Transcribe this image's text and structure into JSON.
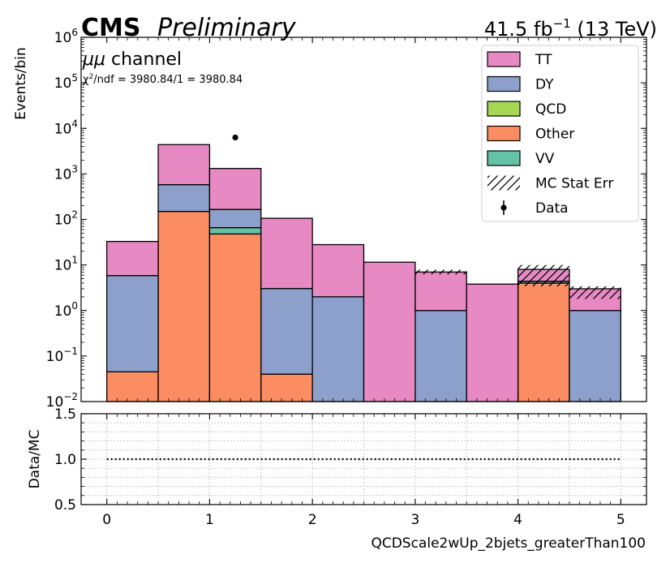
{
  "header": {
    "cms": "CMS",
    "preliminary": "Preliminary",
    "lumi": "41.5 fb",
    "lumi_exp": "−1",
    "energy": " (13 TeV)",
    "channel_sym": "μμ",
    "channel_word": " channel",
    "chi2_sym": "χ",
    "chi2_sup": "2",
    "chi2_rest": "/ndf = 3980.84/1 = 3980.84"
  },
  "chart_data": [
    {
      "type": "bar",
      "subtype": "stacked-histogram",
      "ylabel": "Events/bin",
      "yscale": "log",
      "ylim": [
        0.01,
        1000000
      ],
      "xlim": [
        -0.25,
        5.25
      ],
      "bin_edges": [
        0,
        0.5,
        1,
        1.5,
        2,
        2.5,
        3,
        3.5,
        4,
        4.5,
        5
      ],
      "yticks": [
        {
          "value": 0.01,
          "base": "10",
          "exp": "−2"
        },
        {
          "value": 0.1,
          "base": "10",
          "exp": "−1"
        },
        {
          "value": 1,
          "base": "10",
          "exp": "0"
        },
        {
          "value": 10,
          "base": "10",
          "exp": "1"
        },
        {
          "value": 100,
          "base": "10",
          "exp": "2"
        },
        {
          "value": 1000,
          "base": "10",
          "exp": "3"
        },
        {
          "value": 10000,
          "base": "10",
          "exp": "4"
        },
        {
          "value": 100000,
          "base": "10",
          "exp": "5"
        },
        {
          "value": 1000000,
          "base": "10",
          "exp": "6"
        }
      ],
      "series": [
        {
          "name": "Other",
          "color": "#fc8d62",
          "values": [
            0.045,
            150,
            48,
            0.04,
            0,
            0,
            0,
            0,
            4,
            0
          ]
        },
        {
          "name": "VV",
          "color": "#66c2a5",
          "values": [
            0,
            0,
            18,
            0,
            0,
            0,
            0,
            0,
            0,
            0
          ]
        },
        {
          "name": "QCD",
          "color": "#a6d854",
          "values": [
            0,
            0,
            0,
            0,
            0,
            0,
            0,
            0,
            0,
            0
          ]
        },
        {
          "name": "DY",
          "color": "#8da0cb",
          "values": [
            5.8,
            430,
            100,
            3,
            2,
            0,
            1,
            0,
            0.4,
            1
          ]
        },
        {
          "name": "TT",
          "color": "#e78ac3",
          "values": [
            27,
            3820,
            1150,
            103,
            26,
            11.5,
            6,
            3.8,
            3.6,
            2
          ]
        }
      ],
      "stat_err": {
        "label": "MC Stat Err",
        "bins": [
          6,
          8,
          9
        ],
        "lo": [
          6.2,
          3.4,
          1.8
        ],
        "hi": [
          7.9,
          10,
          3.4
        ]
      },
      "data_points": [
        {
          "x": 1.25,
          "y": 6300
        }
      ],
      "legend": {
        "position": "top-right",
        "entries": [
          {
            "label": "TT",
            "kind": "patch",
            "color": "#e78ac3"
          },
          {
            "label": "DY",
            "kind": "patch",
            "color": "#8da0cb"
          },
          {
            "label": "QCD",
            "kind": "patch",
            "color": "#a6d854"
          },
          {
            "label": "Other",
            "kind": "patch",
            "color": "#fc8d62"
          },
          {
            "label": "VV",
            "kind": "patch",
            "color": "#66c2a5"
          },
          {
            "label": "MC Stat Err",
            "kind": "hatch"
          },
          {
            "label": "Data",
            "kind": "marker"
          }
        ]
      }
    },
    {
      "type": "line",
      "subtype": "ratio",
      "ylabel": "Data/MC",
      "xlabel": "QCDScale2wUp_2bjets_greaterThan100",
      "ylim": [
        0.5,
        1.5
      ],
      "yticks": [
        "0.5",
        "1.0",
        "1.5"
      ],
      "xticks": [
        "0",
        "1",
        "2",
        "3",
        "4",
        "5"
      ],
      "reference_line": {
        "y": 1.0,
        "x": [
          0,
          5
        ],
        "style": "dotted"
      },
      "grid": true
    }
  ]
}
